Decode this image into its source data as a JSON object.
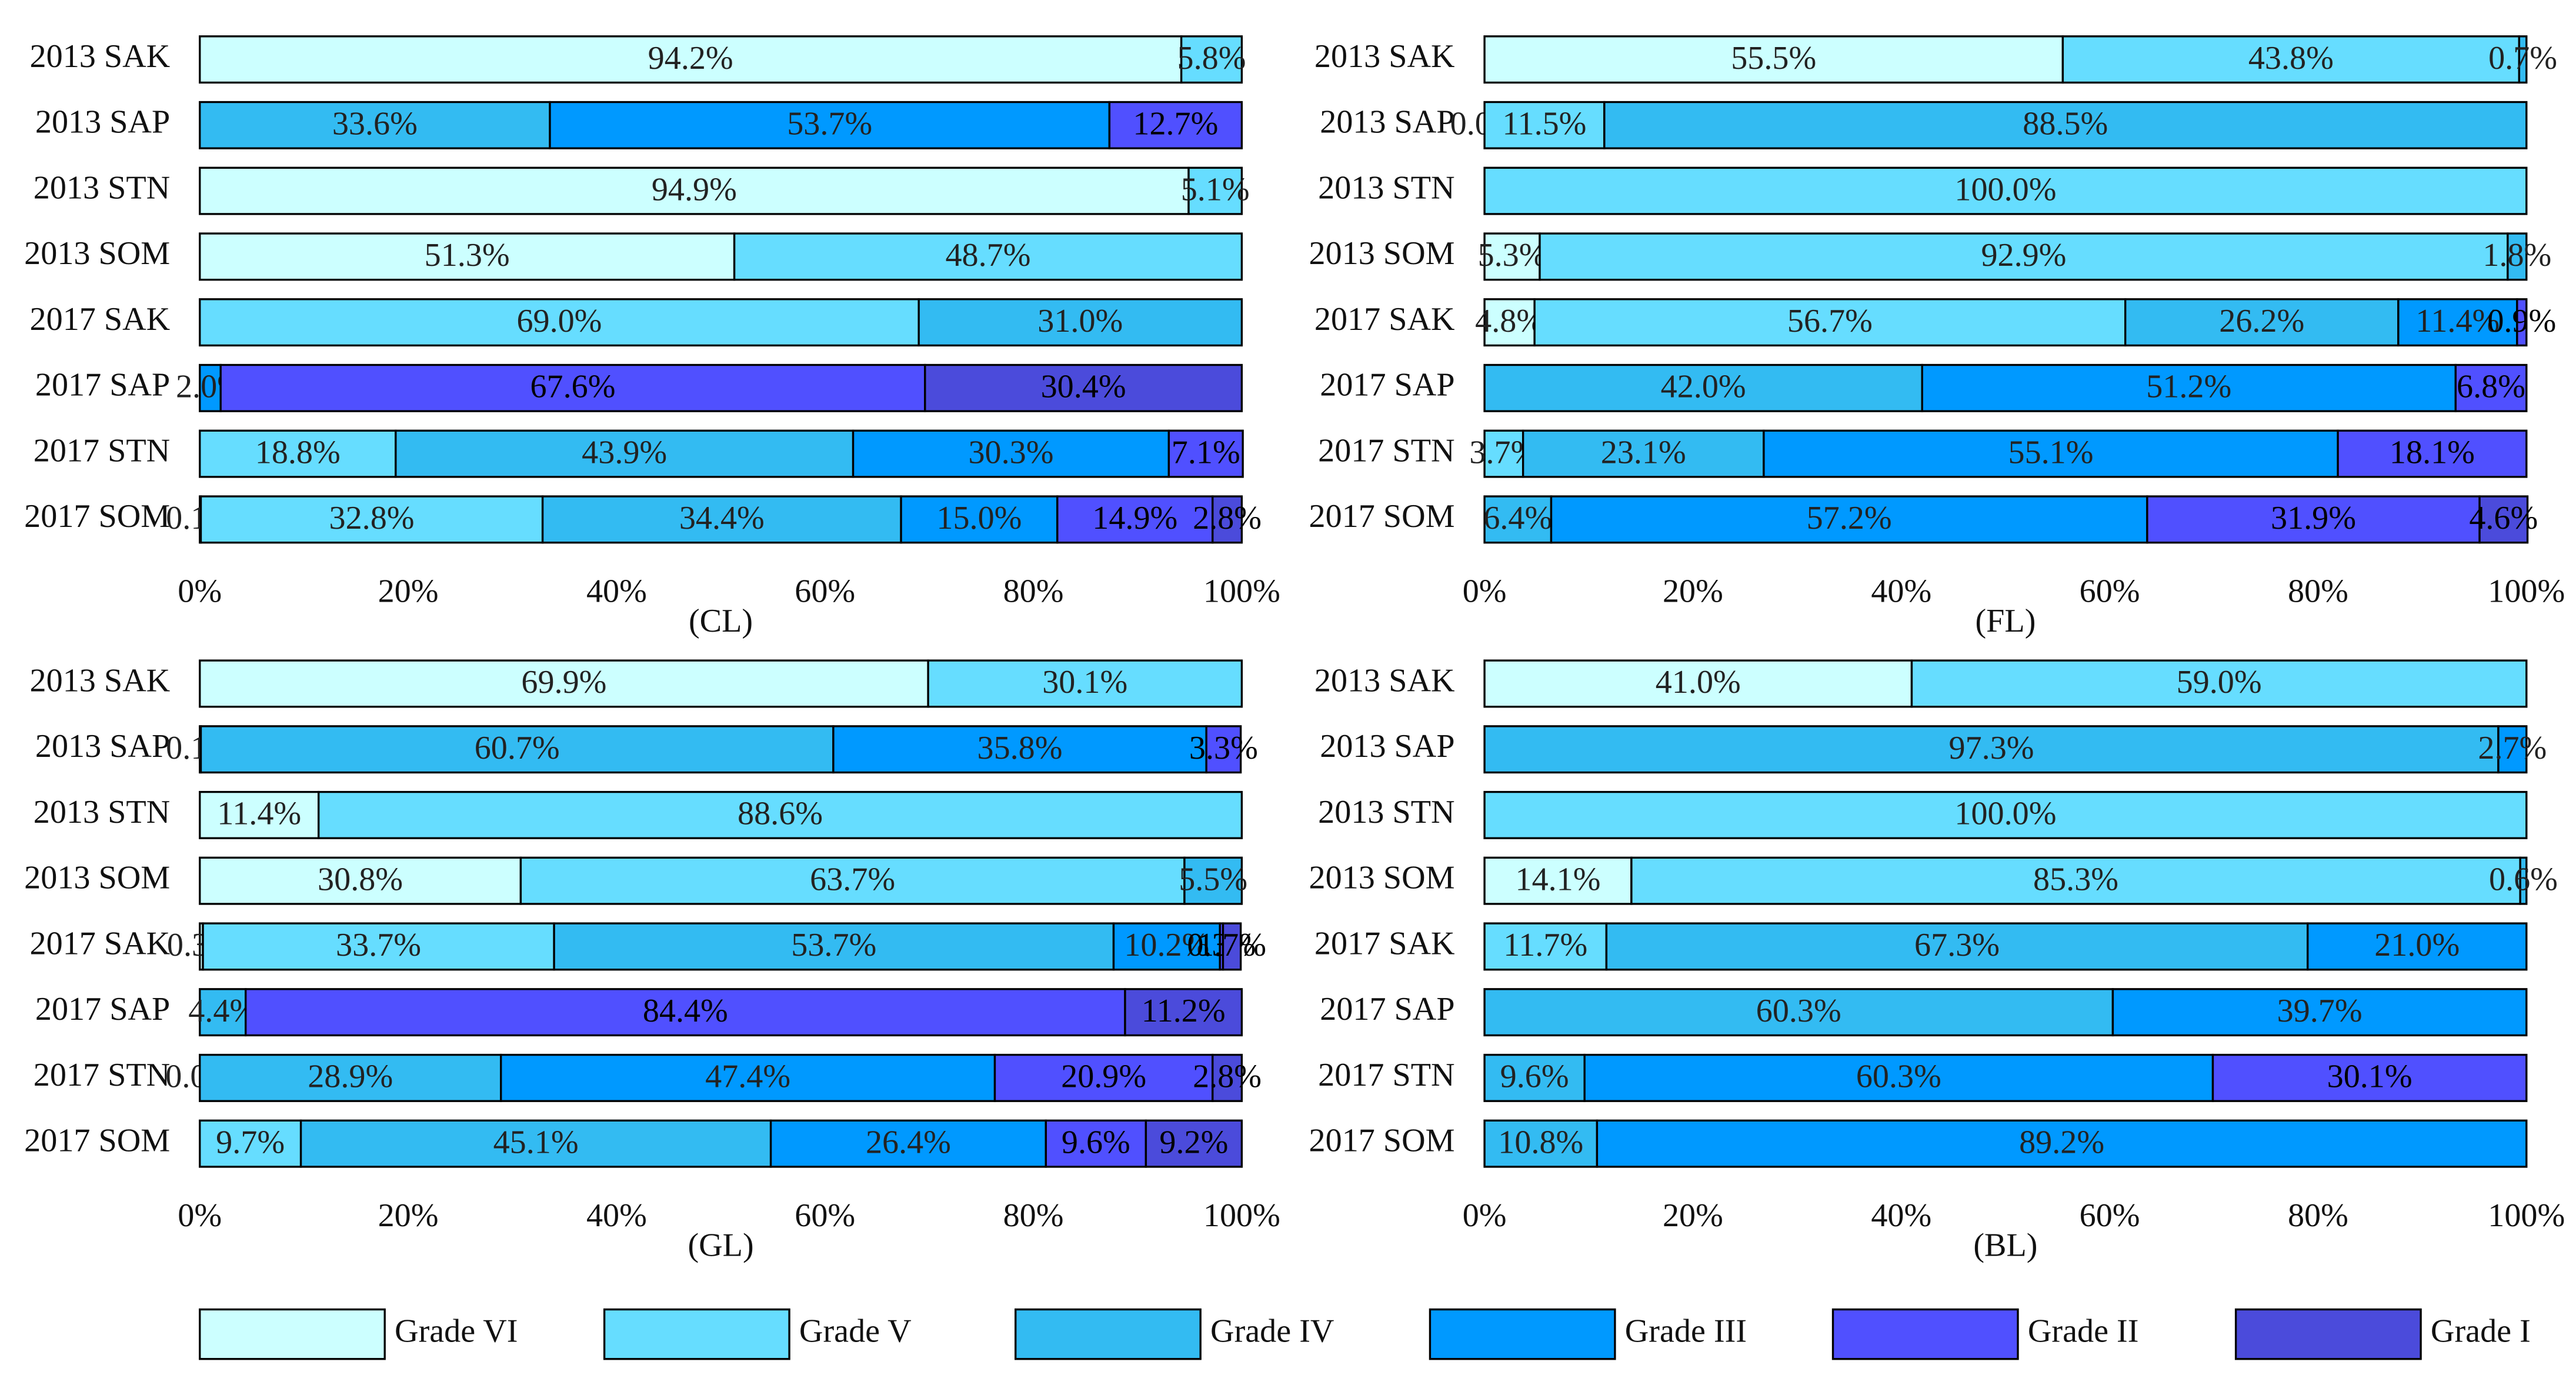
{
  "chart_data": [
    {
      "type": "bar",
      "orientation": "horizontal",
      "stacked": true,
      "xlabel": "(CL)",
      "categories": [
        "2013 SAK",
        "2013 SAP",
        "2013 STN",
        "2013 SOM",
        "2017 SAK",
        "2017 SAP",
        "2017 STN",
        "2017 SOM"
      ],
      "xlim": [
        0,
        100
      ],
      "xticks": [
        {
          "value": 0,
          "label": "0%"
        },
        {
          "value": 20,
          "label": "20%"
        },
        {
          "value": 40,
          "label": "40%"
        },
        {
          "value": 60,
          "label": "60%"
        },
        {
          "value": 80,
          "label": "80%"
        },
        {
          "value": 100,
          "label": "100%"
        }
      ],
      "series": [
        {
          "name": "Grade VI",
          "color": "#ccffff",
          "values": [
            94.2,
            null,
            94.9,
            51.3,
            null,
            null,
            null,
            0.1
          ],
          "value_labels": [
            "94.2%",
            null,
            "94.9%",
            "51.3%",
            null,
            null,
            null,
            "0.1%"
          ]
        },
        {
          "name": "Grade V",
          "color": "#66ddff",
          "values": [
            5.8,
            null,
            5.1,
            48.7,
            69.0,
            null,
            18.8,
            32.8
          ],
          "value_labels": [
            "5.8%",
            null,
            "5.1%",
            "48.7%",
            "69.0%",
            null,
            "18.8%",
            "32.8%"
          ]
        },
        {
          "name": "Grade IV",
          "color": "#33bbf2",
          "values": [
            null,
            33.6,
            null,
            null,
            31.0,
            null,
            43.9,
            34.4
          ],
          "value_labels": [
            null,
            "33.6%",
            null,
            null,
            "31.0%",
            null,
            "43.9%",
            "34.4%"
          ]
        },
        {
          "name": "Grade III",
          "color": "#0099ff",
          "values": [
            null,
            53.7,
            null,
            null,
            null,
            2.0,
            30.3,
            15.0
          ],
          "value_labels": [
            null,
            "53.7%",
            null,
            null,
            null,
            "2.0%",
            "30.3%",
            "15.0%"
          ]
        },
        {
          "name": "Grade II",
          "color": "#5050ff",
          "values": [
            null,
            12.7,
            null,
            null,
            null,
            67.6,
            7.1,
            14.9
          ],
          "value_labels": [
            null,
            "12.7%",
            null,
            null,
            null,
            "67.6%",
            "7.1%",
            "14.9%"
          ]
        },
        {
          "name": "Grade I",
          "color": "#4b4bdb",
          "values": [
            null,
            null,
            null,
            null,
            null,
            30.4,
            null,
            2.8
          ],
          "value_labels": [
            null,
            null,
            null,
            null,
            null,
            "30.4%",
            null,
            "2.8%"
          ]
        }
      ]
    },
    {
      "type": "bar",
      "orientation": "horizontal",
      "stacked": true,
      "xlabel": "(FL)",
      "categories": [
        "2013 SAK",
        "2013 SAP",
        "2013 STN",
        "2013 SOM",
        "2017 SAK",
        "2017 SAP",
        "2017 STN",
        "2017 SOM"
      ],
      "xlim": [
        0,
        100
      ],
      "xticks": [
        {
          "value": 0,
          "label": "0%"
        },
        {
          "value": 20,
          "label": "20%"
        },
        {
          "value": 40,
          "label": "40%"
        },
        {
          "value": 60,
          "label": "60%"
        },
        {
          "value": 80,
          "label": "80%"
        },
        {
          "value": 100,
          "label": "100%"
        }
      ],
      "series": [
        {
          "name": "Grade VI",
          "color": "#ccffff",
          "values": [
            55.5,
            0.0,
            null,
            5.3,
            4.8,
            null,
            null,
            null
          ],
          "value_labels": [
            "55.5%",
            "0.0%",
            null,
            "5.3%",
            "4.8%",
            null,
            null,
            null
          ]
        },
        {
          "name": "Grade V",
          "color": "#66ddff",
          "values": [
            43.8,
            11.5,
            100.0,
            92.9,
            56.7,
            null,
            3.7,
            null
          ],
          "value_labels": [
            "43.8%",
            "11.5%",
            "100.0%",
            "92.9%",
            "56.7%",
            null,
            "3.7%",
            null
          ]
        },
        {
          "name": "Grade IV",
          "color": "#33bbf2",
          "values": [
            0.7,
            88.5,
            null,
            1.8,
            26.2,
            42.0,
            23.1,
            6.4
          ],
          "value_labels": [
            "0.7%",
            "88.5%",
            null,
            "1.8%",
            "26.2%",
            "42.0%",
            "23.1%",
            "6.4%"
          ]
        },
        {
          "name": "Grade III",
          "color": "#0099ff",
          "values": [
            null,
            null,
            null,
            null,
            11.4,
            51.2,
            55.1,
            57.2
          ],
          "value_labels": [
            null,
            null,
            null,
            null,
            "11.4%",
            "51.2%",
            "55.1%",
            "57.2%"
          ]
        },
        {
          "name": "Grade II",
          "color": "#5050ff",
          "values": [
            null,
            null,
            null,
            null,
            0.9,
            6.8,
            18.1,
            31.9
          ],
          "value_labels": [
            null,
            null,
            null,
            null,
            "0.9%",
            "6.8%",
            "18.1%",
            "31.9%"
          ]
        },
        {
          "name": "Grade I",
          "color": "#4b4bdb",
          "values": [
            null,
            null,
            null,
            null,
            null,
            null,
            null,
            4.6
          ],
          "value_labels": [
            null,
            null,
            null,
            null,
            null,
            null,
            null,
            "4.6%"
          ]
        }
      ]
    },
    {
      "type": "bar",
      "orientation": "horizontal",
      "stacked": true,
      "xlabel": "(GL)",
      "categories": [
        "2013 SAK",
        "2013 SAP",
        "2013 STN",
        "2013 SOM",
        "2017 SAK",
        "2017 SAP",
        "2017 STN",
        "2017 SOM"
      ],
      "xlim": [
        0,
        100
      ],
      "xticks": [
        {
          "value": 0,
          "label": "0%"
        },
        {
          "value": 20,
          "label": "20%"
        },
        {
          "value": 40,
          "label": "40%"
        },
        {
          "value": 60,
          "label": "60%"
        },
        {
          "value": 80,
          "label": "80%"
        },
        {
          "value": 100,
          "label": "100%"
        }
      ],
      "series": [
        {
          "name": "Grade VI",
          "color": "#ccffff",
          "values": [
            69.9,
            null,
            11.4,
            30.8,
            0.3,
            null,
            null,
            null
          ],
          "value_labels": [
            "69.9%",
            null,
            "11.4%",
            "30.8%",
            "0.3%",
            null,
            null,
            null
          ]
        },
        {
          "name": "Grade V",
          "color": "#66ddff",
          "values": [
            30.1,
            0.1,
            88.6,
            63.7,
            33.7,
            null,
            0.0,
            9.7
          ],
          "value_labels": [
            "30.1%",
            "0.1%",
            "88.6%",
            "63.7%",
            "33.7%",
            null,
            "0.0%",
            "9.7%"
          ]
        },
        {
          "name": "Grade IV",
          "color": "#33bbf2",
          "values": [
            null,
            60.7,
            null,
            5.5,
            53.7,
            4.4,
            28.9,
            45.1
          ],
          "value_labels": [
            null,
            "60.7%",
            null,
            "5.5%",
            "53.7%",
            "4.4%",
            "28.9%",
            "45.1%"
          ]
        },
        {
          "name": "Grade III",
          "color": "#0099ff",
          "values": [
            null,
            35.8,
            null,
            null,
            10.2,
            null,
            47.4,
            26.4
          ],
          "value_labels": [
            null,
            "35.8%",
            null,
            null,
            "10.2%",
            null,
            "47.4%",
            "26.4%"
          ]
        },
        {
          "name": "Grade II",
          "color": "#5050ff",
          "values": [
            null,
            3.3,
            null,
            null,
            0.3,
            84.4,
            20.9,
            9.6
          ],
          "value_labels": [
            null,
            "3.3%",
            null,
            null,
            "0.3%",
            "84.4%",
            "20.9%",
            "9.6%"
          ]
        },
        {
          "name": "Grade I",
          "color": "#4b4bdb",
          "values": [
            null,
            null,
            null,
            null,
            1.7,
            11.2,
            2.8,
            9.2
          ],
          "value_labels": [
            null,
            null,
            null,
            null,
            "1.7%",
            "11.2%",
            "2.8%",
            "9.2%"
          ]
        }
      ]
    },
    {
      "type": "bar",
      "orientation": "horizontal",
      "stacked": true,
      "xlabel": "(BL)",
      "categories": [
        "2013 SAK",
        "2013 SAP",
        "2013 STN",
        "2013 SOM",
        "2017 SAK",
        "2017 SAP",
        "2017 STN",
        "2017 SOM"
      ],
      "xlim": [
        0,
        100
      ],
      "xticks": [
        {
          "value": 0,
          "label": "0%"
        },
        {
          "value": 20,
          "label": "20%"
        },
        {
          "value": 40,
          "label": "40%"
        },
        {
          "value": 60,
          "label": "60%"
        },
        {
          "value": 80,
          "label": "80%"
        },
        {
          "value": 100,
          "label": "100%"
        }
      ],
      "series": [
        {
          "name": "Grade VI",
          "color": "#ccffff",
          "values": [
            41.0,
            null,
            null,
            14.1,
            null,
            null,
            null,
            null
          ],
          "value_labels": [
            "41.0%",
            null,
            null,
            "14.1%",
            null,
            null,
            null,
            null
          ]
        },
        {
          "name": "Grade V",
          "color": "#66ddff",
          "values": [
            59.0,
            null,
            100.0,
            85.3,
            11.7,
            null,
            null,
            null
          ],
          "value_labels": [
            "59.0%",
            null,
            "100.0%",
            "85.3%",
            "11.7%",
            null,
            null,
            null
          ]
        },
        {
          "name": "Grade IV",
          "color": "#33bbf2",
          "values": [
            null,
            97.3,
            null,
            0.6,
            67.3,
            60.3,
            9.6,
            10.8
          ],
          "value_labels": [
            null,
            "97.3%",
            null,
            "0.6%",
            "67.3%",
            "60.3%",
            "9.6%",
            "10.8%"
          ]
        },
        {
          "name": "Grade III",
          "color": "#0099ff",
          "values": [
            null,
            2.7,
            null,
            null,
            21.0,
            39.7,
            60.3,
            89.2
          ],
          "value_labels": [
            null,
            "2.7%",
            null,
            null,
            "21.0%",
            "39.7%",
            "60.3%",
            "89.2%"
          ]
        },
        {
          "name": "Grade II",
          "color": "#5050ff",
          "values": [
            null,
            null,
            null,
            null,
            null,
            null,
            30.1,
            null
          ],
          "value_labels": [
            null,
            null,
            null,
            null,
            null,
            null,
            "30.1%",
            null
          ]
        },
        {
          "name": "Grade I",
          "color": "#4b4bdb",
          "values": [
            null,
            null,
            null,
            null,
            null,
            null,
            null,
            null
          ],
          "value_labels": [
            null,
            null,
            null,
            null,
            null,
            null,
            null,
            null
          ]
        }
      ]
    }
  ]
}
